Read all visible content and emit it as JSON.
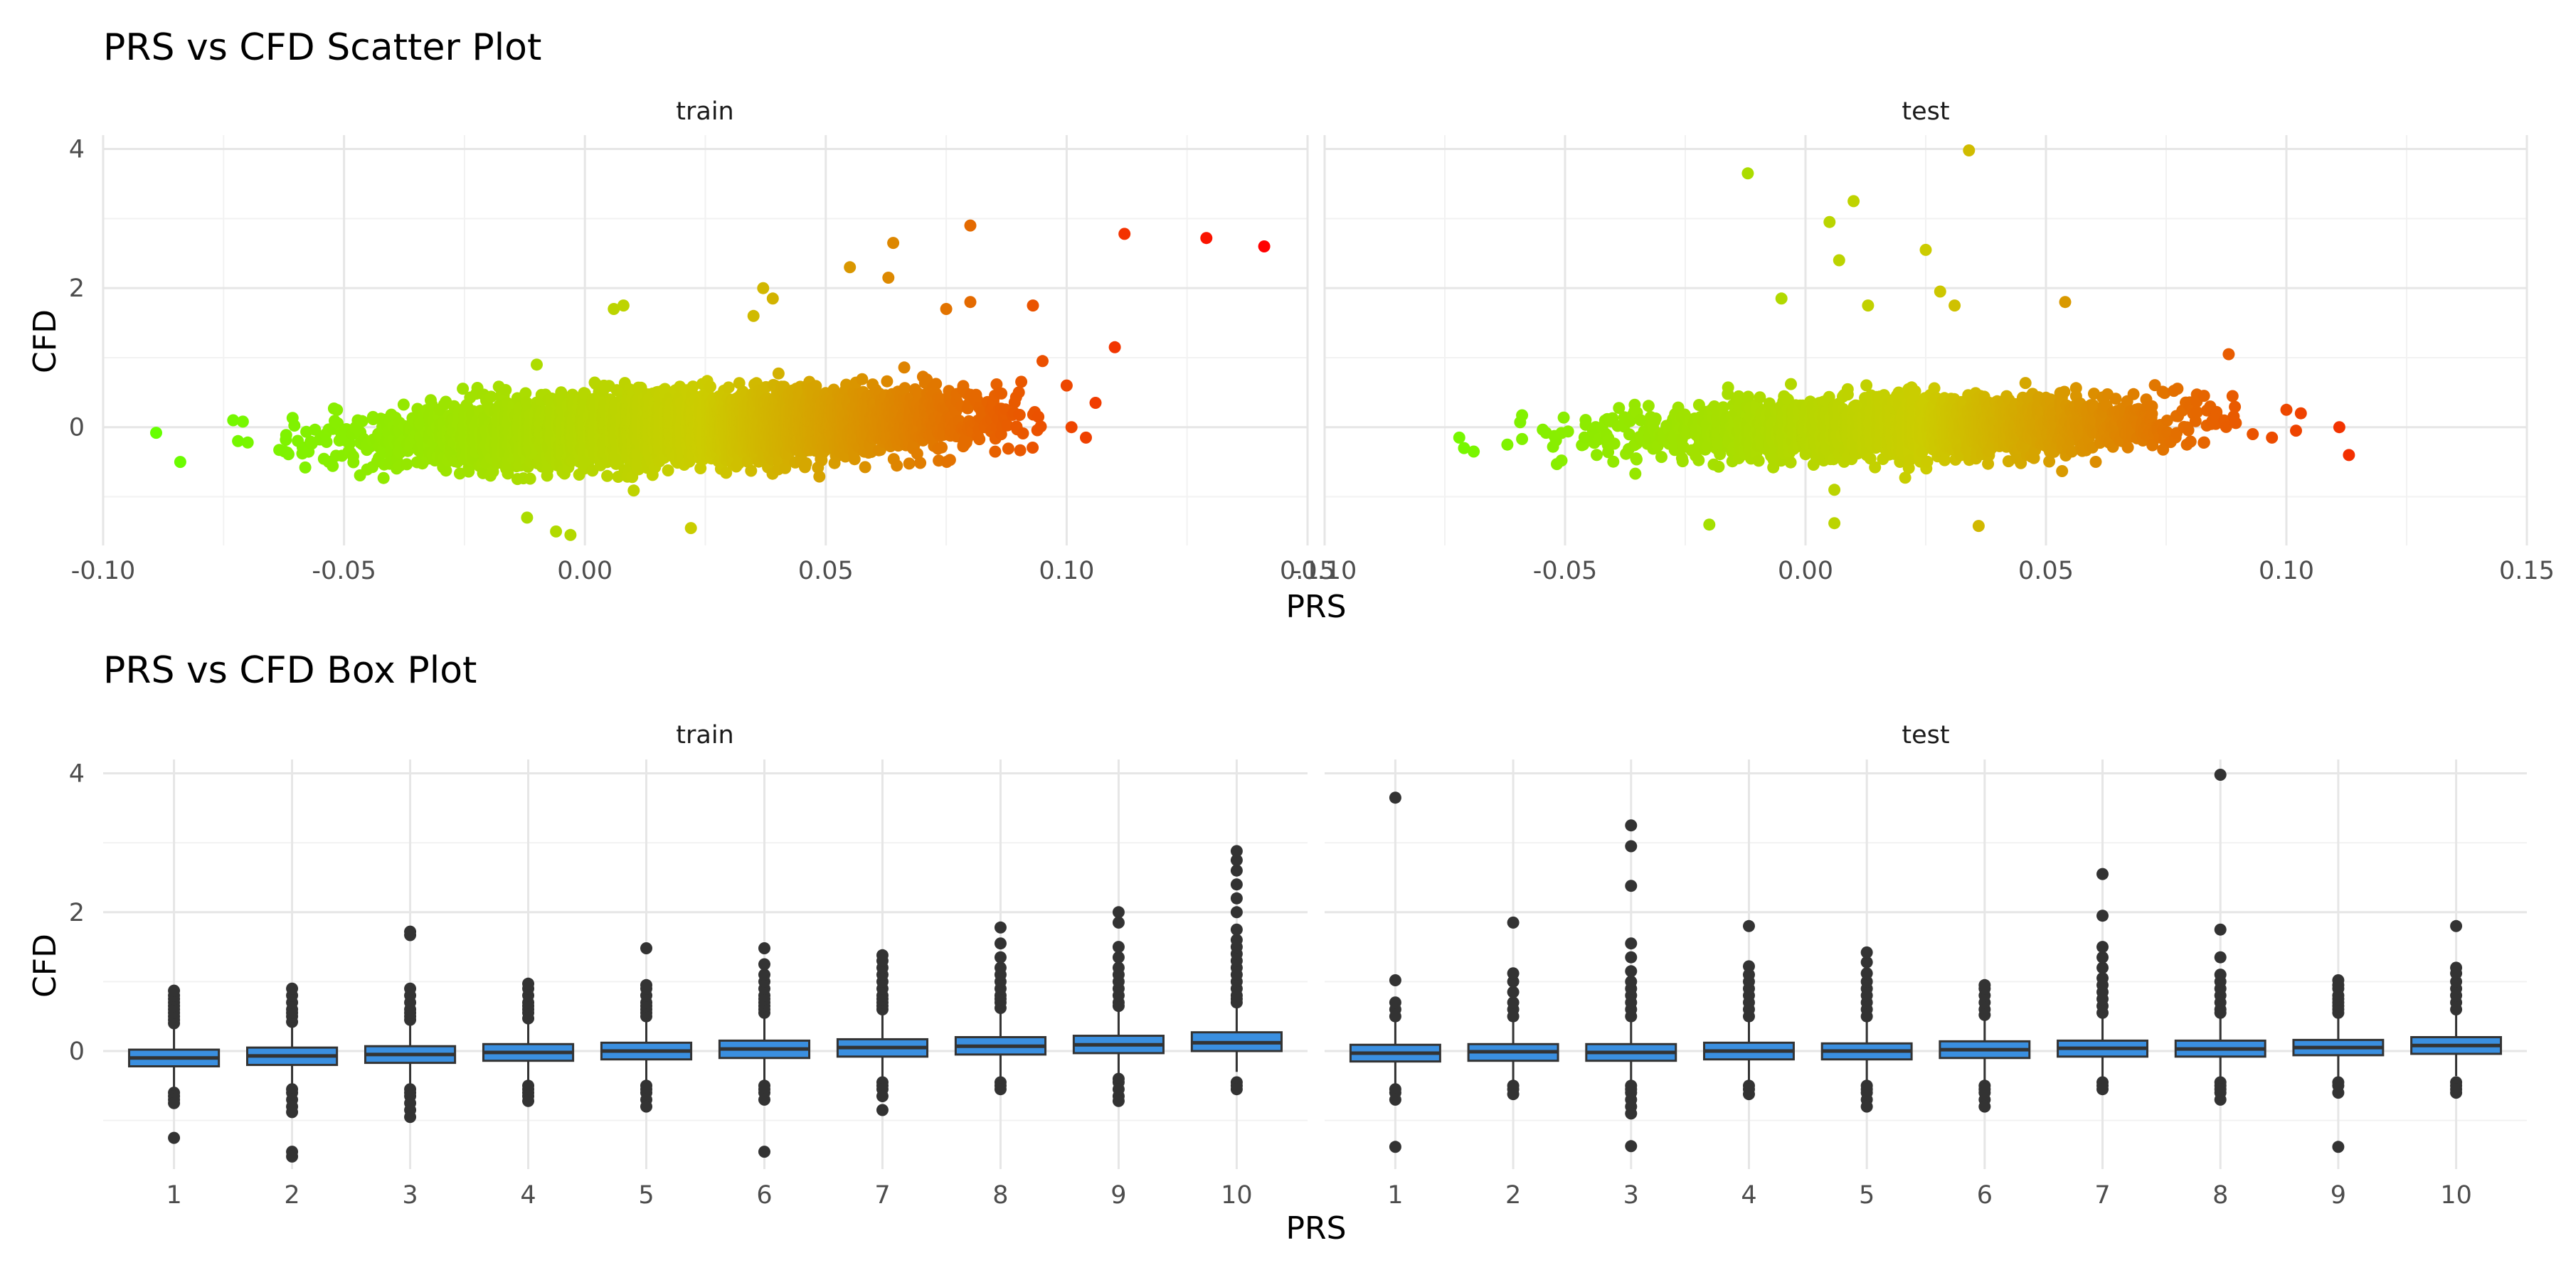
{
  "chart_data": [
    {
      "type": "scatter",
      "title": "PRS vs CFD Scatter Plot",
      "xlabel": "PRS",
      "ylabel": "CFD",
      "facets": [
        "train",
        "test"
      ],
      "xlim": [
        -0.1,
        0.15
      ],
      "ylim": [
        -1.7,
        4.2
      ],
      "x_ticks": [
        -0.1,
        -0.05,
        0.0,
        0.05,
        0.1,
        0.15
      ],
      "x_tick_labels": [
        "-0.10",
        "-0.05",
        "0.00",
        "0.05",
        "0.10",
        "0.15"
      ],
      "y_ticks": [
        0,
        2,
        4
      ],
      "y_tick_labels": [
        "0",
        "2",
        "4"
      ],
      "grid": true,
      "color_scale": {
        "low": "#66ff00",
        "mid": "#cccc00",
        "high": "#ff0000",
        "domain": [
          -0.09,
          0.14
        ]
      },
      "series": [
        {
          "name": "train",
          "density": {
            "n": 6000,
            "x_mean": 0.02,
            "x_sd": 0.028,
            "x_range": [
              -0.065,
              0.095
            ],
            "y_slope": 2.5,
            "y_sd": 0.22
          },
          "points": [
            [
              -0.089,
              -0.08
            ],
            [
              -0.084,
              -0.5
            ],
            [
              -0.073,
              0.1
            ],
            [
              -0.071,
              0.08
            ],
            [
              -0.072,
              -0.2
            ],
            [
              -0.07,
              -0.22
            ],
            [
              -0.012,
              -1.3
            ],
            [
              -0.006,
              -1.5
            ],
            [
              -0.003,
              -1.55
            ],
            [
              0.022,
              -1.45
            ],
            [
              -0.01,
              0.9
            ],
            [
              0.006,
              1.7
            ],
            [
              0.008,
              1.75
            ],
            [
              0.035,
              1.6
            ],
            [
              0.037,
              2.0
            ],
            [
              0.039,
              1.85
            ],
            [
              0.055,
              2.3
            ],
            [
              0.063,
              2.15
            ],
            [
              0.064,
              2.65
            ],
            [
              0.08,
              2.9
            ],
            [
              0.075,
              1.7
            ],
            [
              0.08,
              1.8
            ],
            [
              0.093,
              1.75
            ],
            [
              0.095,
              0.95
            ],
            [
              0.11,
              1.15
            ],
            [
              0.112,
              2.78
            ],
            [
              0.129,
              2.72
            ],
            [
              0.141,
              2.6
            ],
            [
              0.1,
              0.6
            ],
            [
              0.106,
              0.35
            ],
            [
              0.101,
              0.0
            ],
            [
              0.104,
              -0.15
            ]
          ]
        },
        {
          "name": "test",
          "density": {
            "n": 2500,
            "x_mean": 0.02,
            "x_sd": 0.028,
            "x_range": [
              -0.06,
              0.09
            ],
            "y_slope": 1.5,
            "y_sd": 0.2
          },
          "points": [
            [
              -0.072,
              -0.15
            ],
            [
              -0.071,
              -0.3
            ],
            [
              -0.069,
              -0.35
            ],
            [
              -0.062,
              -0.25
            ],
            [
              -0.012,
              3.65
            ],
            [
              0.01,
              3.25
            ],
            [
              0.005,
              2.95
            ],
            [
              0.007,
              2.4
            ],
            [
              0.034,
              3.98
            ],
            [
              0.025,
              2.55
            ],
            [
              0.028,
              1.95
            ],
            [
              -0.005,
              1.85
            ],
            [
              0.054,
              1.8
            ],
            [
              0.031,
              1.75
            ],
            [
              0.013,
              1.75
            ],
            [
              -0.02,
              -1.4
            ],
            [
              0.006,
              -1.38
            ],
            [
              0.036,
              -1.42
            ],
            [
              0.006,
              -0.9
            ],
            [
              0.088,
              1.05
            ],
            [
              0.093,
              -0.1
            ],
            [
              0.097,
              -0.15
            ],
            [
              0.1,
              0.25
            ],
            [
              0.102,
              -0.05
            ],
            [
              0.103,
              0.2
            ],
            [
              0.111,
              0.0
            ],
            [
              0.113,
              -0.4
            ]
          ]
        }
      ]
    },
    {
      "type": "box",
      "title": "PRS vs CFD Box Plot",
      "xlabel": "PRS",
      "ylabel": "CFD",
      "facets": [
        "train",
        "test"
      ],
      "categories": [
        "1",
        "2",
        "3",
        "4",
        "5",
        "6",
        "7",
        "8",
        "9",
        "10"
      ],
      "ylim": [
        -1.7,
        4.2
      ],
      "y_ticks": [
        0,
        2,
        4
      ],
      "y_tick_labels": [
        "0",
        "2",
        "4"
      ],
      "grid": true,
      "box_fill": "#3a8fe0",
      "series": [
        {
          "name": "train",
          "boxes": [
            {
              "q1": -0.22,
              "median": -0.1,
              "q3": 0.02,
              "whisker_low": -0.55,
              "whisker_high": 0.35,
              "outliers": [
                0.4,
                0.45,
                0.5,
                0.55,
                0.6,
                0.65,
                0.7,
                0.75,
                0.8,
                0.87,
                -0.6,
                -0.65,
                -0.7,
                -0.75,
                -1.25
              ]
            },
            {
              "q1": -0.2,
              "median": -0.07,
              "q3": 0.05,
              "whisker_low": -0.52,
              "whisker_high": 0.38,
              "outliers": [
                0.42,
                0.5,
                0.55,
                0.6,
                0.7,
                0.8,
                0.9,
                -0.55,
                -0.6,
                -0.7,
                -0.8,
                -0.88,
                -1.45,
                -1.52
              ]
            },
            {
              "q1": -0.17,
              "median": -0.05,
              "q3": 0.07,
              "whisker_low": -0.5,
              "whisker_high": 0.4,
              "outliers": [
                0.45,
                0.5,
                0.55,
                0.6,
                0.7,
                0.8,
                0.9,
                1.67,
                1.72,
                -0.55,
                -0.6,
                -0.65,
                -0.75,
                -0.85,
                -0.95
              ]
            },
            {
              "q1": -0.14,
              "median": -0.02,
              "q3": 0.1,
              "whisker_low": -0.45,
              "whisker_high": 0.43,
              "outliers": [
                0.47,
                0.55,
                0.6,
                0.65,
                0.7,
                0.8,
                0.9,
                0.97,
                -0.5,
                -0.55,
                -0.6,
                -0.65,
                -0.72
              ]
            },
            {
              "q1": -0.12,
              "median": 0.0,
              "q3": 0.12,
              "whisker_low": -0.44,
              "whisker_high": 0.46,
              "outliers": [
                0.5,
                0.55,
                0.6,
                0.65,
                0.7,
                0.8,
                0.9,
                0.95,
                1.48,
                -0.5,
                -0.55,
                -0.6,
                -0.7,
                -0.8
              ]
            },
            {
              "q1": -0.1,
              "median": 0.03,
              "q3": 0.15,
              "whisker_low": -0.42,
              "whisker_high": 0.5,
              "outliers": [
                0.55,
                0.6,
                0.65,
                0.7,
                0.75,
                0.8,
                0.9,
                1.0,
                1.1,
                1.25,
                1.48,
                -0.5,
                -0.55,
                -0.6,
                -0.7,
                -1.45
              ]
            },
            {
              "q1": -0.08,
              "median": 0.05,
              "q3": 0.17,
              "whisker_low": -0.4,
              "whisker_high": 0.55,
              "outliers": [
                0.6,
                0.65,
                0.7,
                0.75,
                0.8,
                0.9,
                1.0,
                1.1,
                1.2,
                1.3,
                1.38,
                -0.45,
                -0.5,
                -0.55,
                -0.65,
                -0.85
              ]
            },
            {
              "q1": -0.05,
              "median": 0.07,
              "q3": 0.2,
              "whisker_low": -0.38,
              "whisker_high": 0.58,
              "outliers": [
                0.62,
                0.7,
                0.75,
                0.8,
                0.9,
                1.0,
                1.1,
                1.2,
                1.35,
                1.55,
                1.78,
                -0.45,
                -0.5,
                -0.55
              ]
            },
            {
              "q1": -0.03,
              "median": 0.09,
              "q3": 0.22,
              "whisker_low": -0.35,
              "whisker_high": 0.6,
              "outliers": [
                0.65,
                0.7,
                0.8,
                0.9,
                1.0,
                1.1,
                1.2,
                1.35,
                1.5,
                1.85,
                2.0,
                -0.4,
                -0.45,
                -0.55,
                -0.65,
                -0.72
              ]
            },
            {
              "q1": 0.0,
              "median": 0.12,
              "q3": 0.27,
              "whisker_low": -0.3,
              "whisker_high": 0.65,
              "outliers": [
                0.7,
                0.75,
                0.8,
                0.9,
                1.0,
                1.1,
                1.2,
                1.3,
                1.4,
                1.5,
                1.6,
                1.75,
                2.0,
                2.2,
                2.4,
                2.6,
                2.75,
                2.88,
                -0.45,
                -0.5,
                -0.55
              ]
            }
          ]
        },
        {
          "name": "test",
          "boxes": [
            {
              "q1": -0.15,
              "median": -0.03,
              "q3": 0.09,
              "whisker_low": -0.47,
              "whisker_high": 0.42,
              "outliers": [
                0.5,
                0.6,
                0.7,
                1.02,
                3.65,
                -0.55,
                -0.6,
                -0.7,
                -1.38
              ]
            },
            {
              "q1": -0.14,
              "median": -0.01,
              "q3": 0.1,
              "whisker_low": -0.45,
              "whisker_high": 0.44,
              "outliers": [
                0.5,
                0.6,
                0.7,
                0.85,
                1.0,
                1.12,
                1.85,
                -0.5,
                -0.55,
                -0.62
              ]
            },
            {
              "q1": -0.14,
              "median": -0.02,
              "q3": 0.1,
              "whisker_low": -0.45,
              "whisker_high": 0.44,
              "outliers": [
                0.5,
                0.6,
                0.7,
                0.8,
                0.9,
                1.0,
                1.15,
                1.35,
                1.55,
                2.38,
                2.95,
                3.25,
                -0.5,
                -0.55,
                -0.6,
                -0.7,
                -0.8,
                -0.9,
                -1.37
              ]
            },
            {
              "q1": -0.12,
              "median": 0.0,
              "q3": 0.12,
              "whisker_low": -0.44,
              "whisker_high": 0.46,
              "outliers": [
                0.5,
                0.6,
                0.7,
                0.8,
                0.9,
                1.0,
                1.1,
                1.22,
                1.8,
                -0.5,
                -0.55,
                -0.62
              ]
            },
            {
              "q1": -0.12,
              "median": 0.0,
              "q3": 0.11,
              "whisker_low": -0.44,
              "whisker_high": 0.46,
              "outliers": [
                0.5,
                0.6,
                0.7,
                0.8,
                0.9,
                1.0,
                1.12,
                1.28,
                1.42,
                -0.5,
                -0.55,
                -0.6,
                -0.7,
                -0.8
              ]
            },
            {
              "q1": -0.1,
              "median": 0.02,
              "q3": 0.14,
              "whisker_low": -0.42,
              "whisker_high": 0.48,
              "outliers": [
                0.52,
                0.6,
                0.7,
                0.8,
                0.9,
                0.95,
                -0.5,
                -0.55,
                -0.6,
                -0.7,
                -0.8
              ]
            },
            {
              "q1": -0.08,
              "median": 0.04,
              "q3": 0.15,
              "whisker_low": -0.4,
              "whisker_high": 0.5,
              "outliers": [
                0.55,
                0.65,
                0.75,
                0.85,
                0.95,
                1.05,
                1.2,
                1.35,
                1.5,
                1.95,
                2.55,
                -0.45,
                -0.5,
                -0.55
              ]
            },
            {
              "q1": -0.08,
              "median": 0.03,
              "q3": 0.15,
              "whisker_low": -0.4,
              "whisker_high": 0.5,
              "outliers": [
                0.55,
                0.6,
                0.7,
                0.8,
                0.9,
                1.0,
                1.1,
                1.35,
                1.75,
                3.98,
                -0.45,
                -0.5,
                -0.55,
                -0.6,
                -0.7
              ]
            },
            {
              "q1": -0.06,
              "median": 0.05,
              "q3": 0.16,
              "whisker_low": -0.38,
              "whisker_high": 0.5,
              "outliers": [
                0.55,
                0.6,
                0.65,
                0.7,
                0.75,
                0.8,
                0.9,
                0.95,
                1.02,
                -0.45,
                -0.5,
                -0.6,
                -1.38
              ]
            },
            {
              "q1": -0.04,
              "median": 0.08,
              "q3": 0.2,
              "whisker_low": -0.36,
              "whisker_high": 0.55,
              "outliers": [
                0.6,
                0.7,
                0.8,
                0.9,
                1.0,
                1.12,
                1.2,
                1.8,
                -0.45,
                -0.5,
                -0.55,
                -0.6
              ]
            }
          ]
        }
      ]
    }
  ]
}
